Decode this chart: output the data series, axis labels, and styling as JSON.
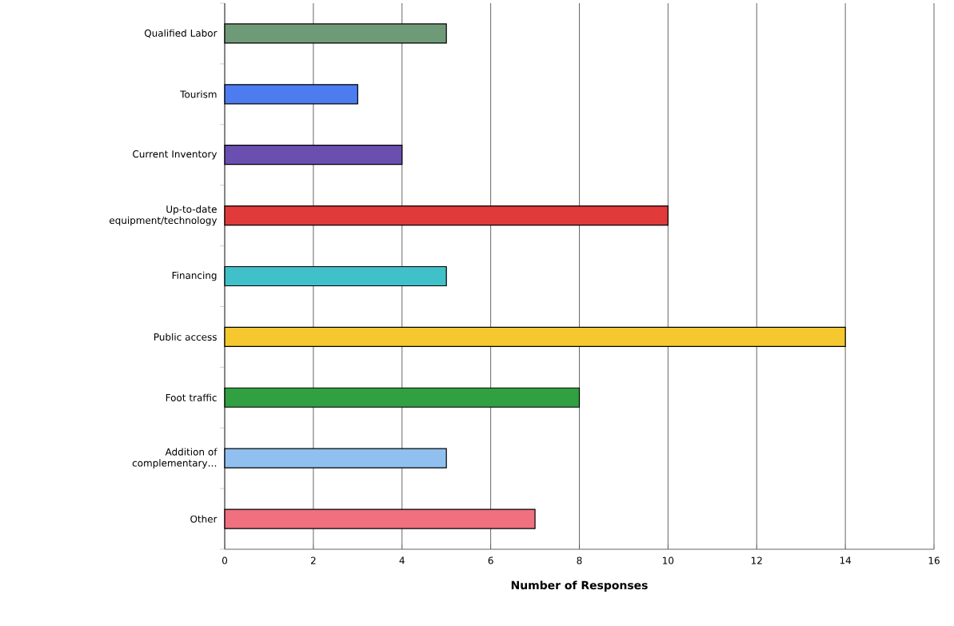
{
  "chart_data": {
    "type": "bar",
    "orientation": "horizontal",
    "xlabel": "Number of Responses",
    "categories": [
      "Qualified Labor",
      "Tourism",
      "Current Inventory",
      "Up-to-date equipment/technology",
      "Financing",
      "Public access",
      "Foot traffic",
      "Addition of complementary…",
      "Other"
    ],
    "values": [
      5,
      3,
      4,
      10,
      5,
      14,
      8,
      5,
      7
    ],
    "colors": [
      "#6f9a78",
      "#4d7cf0",
      "#6a4fb0",
      "#e03a3a",
      "#40c0c8",
      "#f5c830",
      "#30a040",
      "#90c0f0",
      "#f07080"
    ],
    "xlim": [
      0,
      16
    ],
    "xticks": [
      0,
      2,
      4,
      6,
      8,
      10,
      12,
      14,
      16
    ],
    "grid": "x"
  }
}
